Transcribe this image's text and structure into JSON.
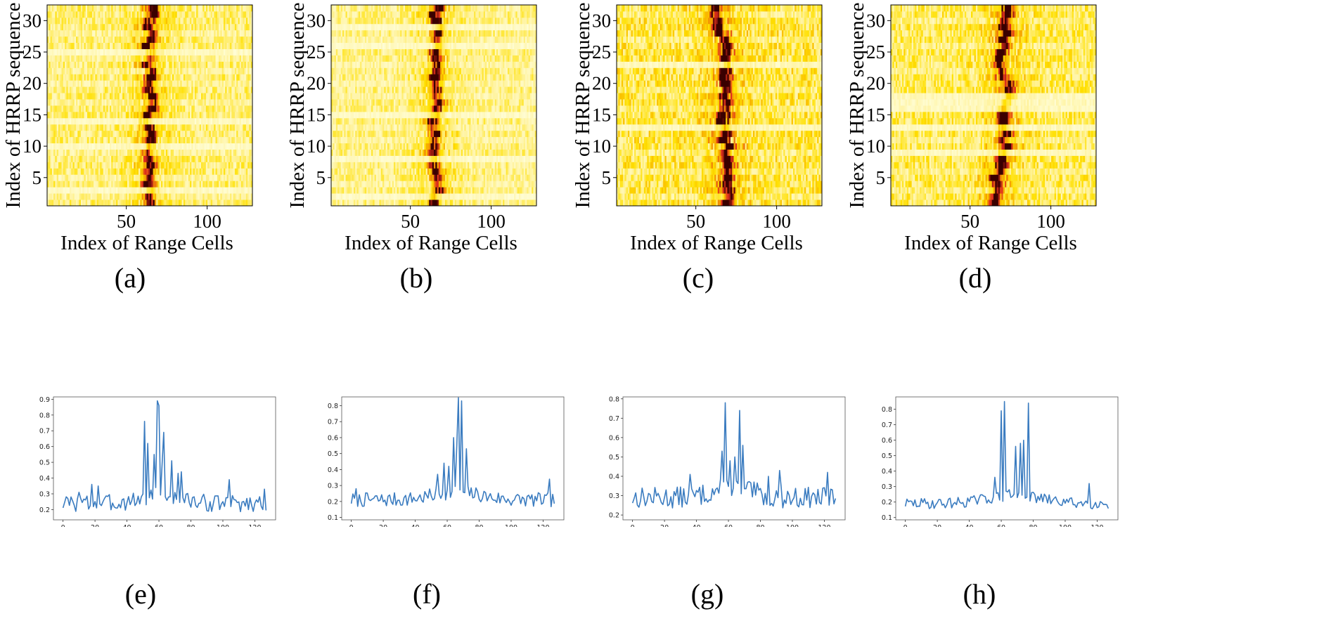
{
  "chart_data": [
    {
      "type": "heatmap",
      "caption": "(a)",
      "xlabel": "Index of Range Cells",
      "ylabel": "Index of HRRP sequence",
      "xticks": [
        50,
        100
      ],
      "yticks": [
        5,
        10,
        15,
        20,
        25,
        30
      ],
      "xlim": [
        1,
        128
      ],
      "ylim": [
        0.5,
        32.5
      ],
      "rows": 32,
      "cols": 128,
      "colormap": [
        "#ffffe0",
        "#fff3a0",
        "#ffe000",
        "#f5a000",
        "#e0301e",
        "#3a0000"
      ],
      "seed": 11,
      "rowCenters": [
        65,
        64,
        65,
        64,
        63,
        64,
        66,
        65,
        64,
        63,
        64,
        65,
        63,
        62,
        64,
        66,
        65,
        66,
        65,
        64,
        66,
        66,
        63,
        66,
        65,
        64,
        65,
        66,
        63,
        64,
        66,
        67
      ],
      "centerSpread": 3,
      "brightRows": [
        3,
        10,
        14,
        25
      ],
      "dimRows": [
        2,
        5,
        9,
        17,
        20,
        22,
        24,
        28
      ],
      "bgLevel": 0.27
    },
    {
      "type": "heatmap",
      "caption": "(b)",
      "xlabel": "Index of Range Cells",
      "ylabel": "Index of HRRP sequence",
      "xticks": [
        50,
        100
      ],
      "yticks": [
        5,
        10,
        15,
        20,
        25,
        30
      ],
      "xlim": [
        1,
        128
      ],
      "ylim": [
        0.5,
        32.5
      ],
      "rows": 32,
      "cols": 128,
      "colormap": [
        "#ffffe0",
        "#fff3a0",
        "#ffe000",
        "#f5a000",
        "#e0301e",
        "#3a0000"
      ],
      "seed": 23,
      "rowCenters": [
        66,
        66,
        67,
        68,
        66,
        65,
        66,
        65,
        65,
        66,
        66,
        67,
        65,
        64,
        65,
        66,
        66,
        65,
        67,
        66,
        66,
        65,
        67,
        66,
        64,
        68,
        66,
        66,
        68,
        66,
        66,
        68
      ],
      "centerSpread": 3,
      "brightRows": [
        2,
        8,
        15,
        26,
        29
      ],
      "dimRows": [
        4,
        11,
        13,
        18,
        20,
        23,
        27
      ],
      "bgLevel": 0.24
    },
    {
      "type": "heatmap",
      "caption": "(c)",
      "xlabel": "Index of Range Cells",
      "ylabel": "Index of HRRP sequence",
      "xticks": [
        50,
        100
      ],
      "yticks": [
        5,
        10,
        15,
        20,
        25,
        30
      ],
      "xlim": [
        1,
        128
      ],
      "ylim": [
        0.5,
        32.5
      ],
      "rows": 32,
      "cols": 128,
      "colormap": [
        "#ffffe0",
        "#fff3a0",
        "#ffe000",
        "#f5a000",
        "#e0301e",
        "#3a0000"
      ],
      "seed": 37,
      "rowCenters": [
        70,
        70,
        69,
        69,
        70,
        68,
        70,
        69,
        68,
        69,
        68,
        69,
        67,
        67,
        68,
        69,
        69,
        68,
        70,
        70,
        69,
        69,
        69,
        68,
        70,
        70,
        67,
        66,
        64,
        63,
        62,
        62
      ],
      "centerSpread": 3,
      "brightRows": [
        13,
        23
      ],
      "dimRows": [
        2,
        6,
        9,
        16,
        19,
        27,
        31
      ],
      "bgLevel": 0.36
    },
    {
      "type": "heatmap",
      "caption": "(d)",
      "xlabel": "Index of Range Cells",
      "ylabel": "Index of HRRP sequence",
      "xticks": [
        50,
        100
      ],
      "yticks": [
        5,
        10,
        15,
        20,
        25,
        30
      ],
      "xlim": [
        1,
        128
      ],
      "ylim": [
        0.5,
        32.5
      ],
      "rows": 32,
      "cols": 128,
      "colormap": [
        "#ffffe0",
        "#fff3a0",
        "#ffe000",
        "#f5a000",
        "#e0301e",
        "#3a0000"
      ],
      "seed": 51,
      "rowCenters": [
        66,
        66,
        67,
        66,
        67,
        68,
        68,
        69,
        70,
        72,
        71,
        72,
        70,
        70,
        70,
        72,
        73,
        74,
        74,
        74,
        72,
        70,
        69,
        69,
        70,
        71,
        71,
        72,
        72,
        72,
        73,
        73
      ],
      "centerSpread": 3,
      "brightRows": [
        9,
        13,
        16,
        17,
        18
      ],
      "dimRows": [
        3,
        6,
        11,
        22,
        26,
        30
      ],
      "bgLevel": 0.32
    },
    {
      "type": "line",
      "caption": "(e)",
      "xticks": [
        0,
        20,
        40,
        60,
        80,
        100,
        120
      ],
      "xlim": [
        -6,
        133
      ],
      "yticks": [
        0.2,
        0.3,
        0.4,
        0.5,
        0.6,
        0.7,
        0.8,
        0.9
      ],
      "ylim": [
        0.135,
        0.915
      ],
      "peaks": [
        {
          "x": 51,
          "y": 0.76
        },
        {
          "x": 53,
          "y": 0.62
        },
        {
          "x": 57,
          "y": 0.55
        },
        {
          "x": 59,
          "y": 0.89
        },
        {
          "x": 60,
          "y": 0.86
        },
        {
          "x": 62,
          "y": 0.49
        },
        {
          "x": 63,
          "y": 0.69
        },
        {
          "x": 68,
          "y": 0.51
        },
        {
          "x": 72,
          "y": 0.43
        },
        {
          "x": 74,
          "y": 0.44
        },
        {
          "x": 18,
          "y": 0.36
        },
        {
          "x": 22,
          "y": 0.35
        },
        {
          "x": 10,
          "y": 0.31
        },
        {
          "x": 104,
          "y": 0.39
        },
        {
          "x": 126,
          "y": 0.33
        }
      ],
      "center": 60,
      "width": 6,
      "base": 0.24,
      "noise": 0.055,
      "seed": 3,
      "min": 0.14
    },
    {
      "type": "line",
      "caption": "(f)",
      "xticks": [
        0,
        20,
        40,
        60,
        80,
        100,
        120
      ],
      "xlim": [
        -6,
        133
      ],
      "yticks": [
        0.1,
        0.2,
        0.3,
        0.4,
        0.5,
        0.6,
        0.7,
        0.8
      ],
      "ylim": [
        0.085,
        0.855
      ],
      "peaks": [
        {
          "x": 67,
          "y": 0.85
        },
        {
          "x": 69,
          "y": 0.83
        },
        {
          "x": 64,
          "y": 0.6
        },
        {
          "x": 66,
          "y": 0.55
        },
        {
          "x": 58,
          "y": 0.44
        },
        {
          "x": 61,
          "y": 0.42
        },
        {
          "x": 72,
          "y": 0.53
        },
        {
          "x": 3,
          "y": 0.28
        },
        {
          "x": 124,
          "y": 0.34
        },
        {
          "x": 54,
          "y": 0.37
        }
      ],
      "center": 66,
      "width": 7,
      "base": 0.21,
      "noise": 0.045,
      "seed": 7,
      "min": 0.13
    },
    {
      "type": "line",
      "caption": "(g)",
      "xticks": [
        0,
        20,
        40,
        60,
        80,
        100,
        120
      ],
      "xlim": [
        -6,
        133
      ],
      "yticks": [
        0.2,
        0.3,
        0.4,
        0.5,
        0.6,
        0.7,
        0.8
      ],
      "ylim": [
        0.175,
        0.81
      ],
      "peaks": [
        {
          "x": 58,
          "y": 0.78
        },
        {
          "x": 67,
          "y": 0.74
        },
        {
          "x": 56,
          "y": 0.53
        },
        {
          "x": 61,
          "y": 0.48
        },
        {
          "x": 64,
          "y": 0.5
        },
        {
          "x": 69,
          "y": 0.56
        },
        {
          "x": 36,
          "y": 0.41
        },
        {
          "x": 92,
          "y": 0.43
        },
        {
          "x": 122,
          "y": 0.42
        },
        {
          "x": 85,
          "y": 0.4
        }
      ],
      "center": 62,
      "width": 6,
      "base": 0.29,
      "noise": 0.055,
      "seed": 13,
      "min": 0.19
    },
    {
      "type": "line",
      "caption": "(h)",
      "xticks": [
        0,
        20,
        40,
        60,
        80,
        100,
        120
      ],
      "xlim": [
        -6,
        133
      ],
      "yticks": [
        0.1,
        0.2,
        0.3,
        0.4,
        0.5,
        0.6,
        0.7,
        0.8
      ],
      "ylim": [
        0.085,
        0.88
      ],
      "peaks": [
        {
          "x": 60,
          "y": 0.79
        },
        {
          "x": 62,
          "y": 0.85
        },
        {
          "x": 77,
          "y": 0.84
        },
        {
          "x": 65,
          "y": 0.28
        },
        {
          "x": 69,
          "y": 0.56
        },
        {
          "x": 72,
          "y": 0.58
        },
        {
          "x": 74,
          "y": 0.6
        },
        {
          "x": 56,
          "y": 0.36
        },
        {
          "x": 115,
          "y": 0.32
        }
      ],
      "center": 68,
      "width": 9,
      "base": 0.19,
      "noise": 0.035,
      "seed": 29,
      "min": 0.13
    }
  ]
}
